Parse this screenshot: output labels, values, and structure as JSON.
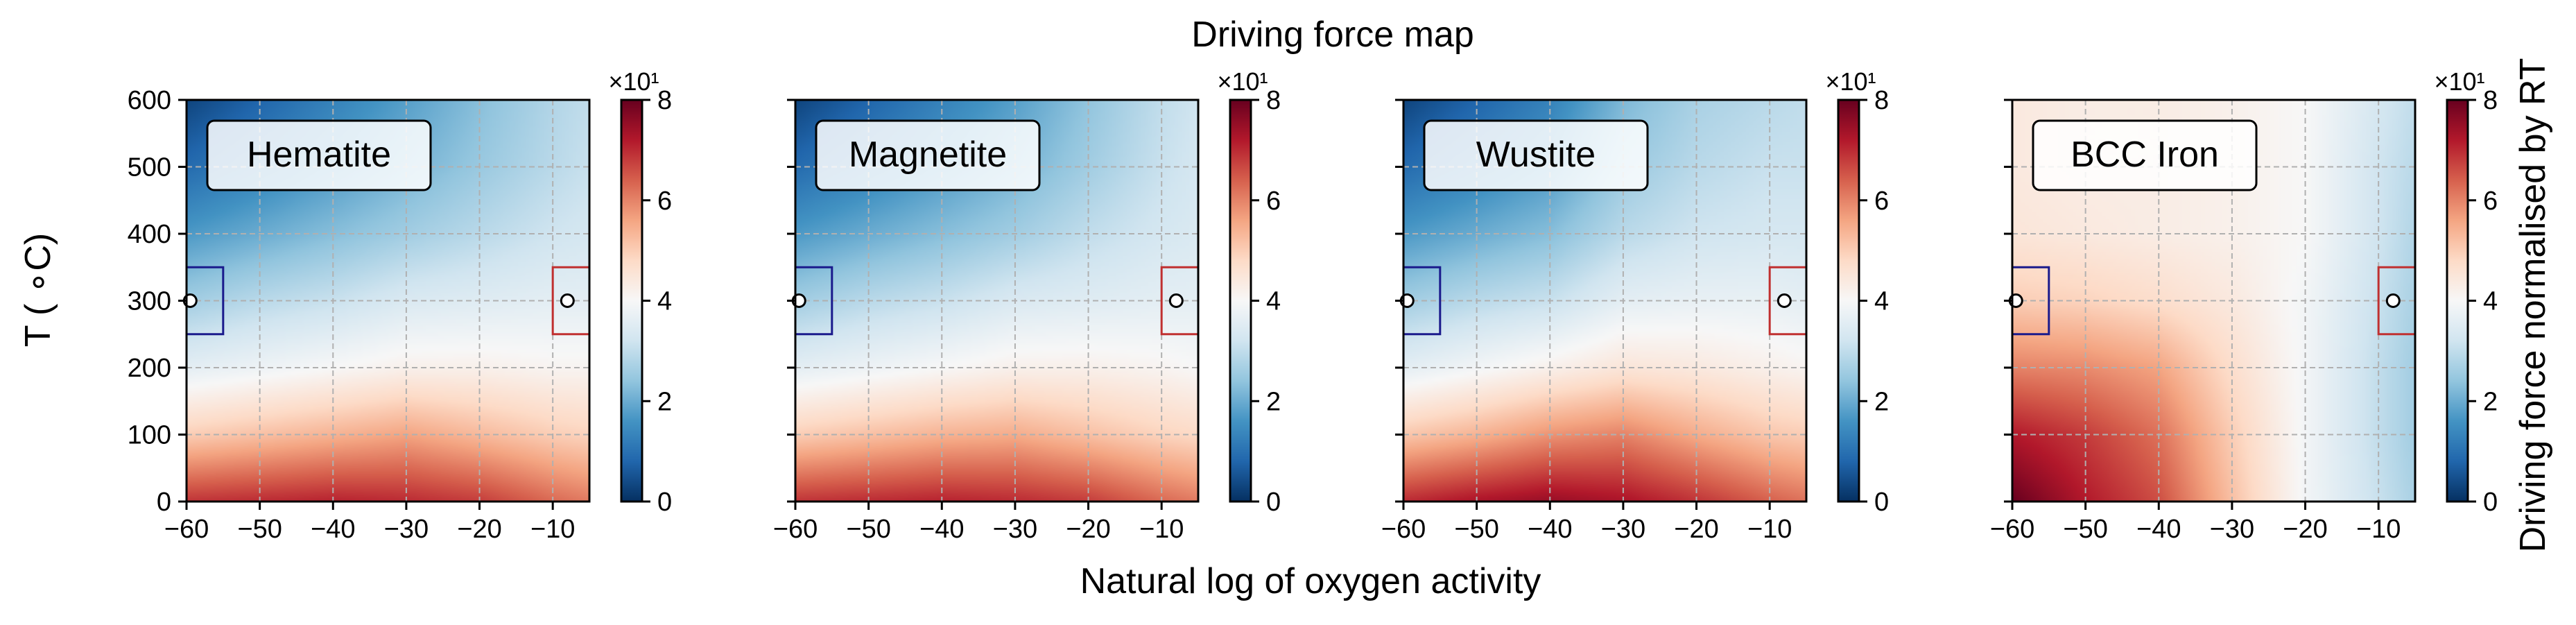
{
  "figure": {
    "title": "Driving force map",
    "xlabel": "Natural log of oxygen activity",
    "ylabel": "T ( ∘C)",
    "colorbar_label": "Driving force normalised by RT",
    "colorbar_exponent": "×10¹",
    "colorbar_ticks": [
      "0",
      "2",
      "4",
      "6",
      "8"
    ]
  },
  "chart_data": [
    {
      "type": "heatmap",
      "panel": "Hematite",
      "title": "Hematite",
      "xlim": [
        -60,
        -5
      ],
      "ylim": [
        0,
        600
      ],
      "x_ticks": [
        -60,
        -50,
        -40,
        -30,
        -20,
        -10
      ],
      "y_ticks": [
        0,
        100,
        200,
        300,
        400,
        500,
        600
      ],
      "grid": true,
      "colormap": "RdBu_r",
      "clim": [
        0,
        8
      ],
      "x": [
        -60,
        -50,
        -40,
        -30,
        -20,
        -10,
        -5
      ],
      "y": [
        0,
        100,
        200,
        300,
        400,
        500,
        600
      ],
      "z": [
        [
          6.9,
          7.0,
          7.1,
          7.0,
          6.8,
          6.3,
          6.1
        ],
        [
          5.0,
          5.2,
          5.4,
          5.6,
          5.3,
          5.0,
          4.9
        ],
        [
          3.6,
          3.8,
          4.0,
          4.2,
          4.2,
          4.1,
          4.1
        ],
        [
          2.6,
          2.9,
          3.1,
          3.4,
          3.5,
          3.6,
          3.6
        ],
        [
          1.7,
          2.0,
          2.3,
          2.6,
          2.9,
          3.2,
          3.3
        ],
        [
          0.9,
          1.3,
          1.7,
          2.1,
          2.5,
          2.9,
          3.1
        ],
        [
          0.3,
          0.8,
          1.3,
          1.8,
          2.3,
          2.8,
          3.0
        ]
      ],
      "markers": [
        {
          "x": -59.5,
          "y": 300
        },
        {
          "x": -8,
          "y": 300
        }
      ],
      "boxes": [
        {
          "x0": -60,
          "x1": -55,
          "y0": 250,
          "y1": 350,
          "color": "#1a1a8c"
        },
        {
          "x0": -10,
          "x1": -5,
          "y0": 250,
          "y1": 350,
          "color": "#c03030"
        }
      ]
    },
    {
      "type": "heatmap",
      "panel": "Magnetite",
      "title": "Magnetite",
      "xlim": [
        -60,
        -5
      ],
      "ylim": [
        0,
        600
      ],
      "x_ticks": [
        -60,
        -50,
        -40,
        -30,
        -20,
        -10
      ],
      "y_ticks": [
        0,
        100,
        200,
        300,
        400,
        500,
        600
      ],
      "grid": true,
      "colormap": "RdBu_r",
      "clim": [
        0,
        8
      ],
      "x": [
        -60,
        -50,
        -40,
        -30,
        -20,
        -10,
        -5
      ],
      "y": [
        0,
        100,
        200,
        300,
        400,
        500,
        600
      ],
      "z": [
        [
          6.9,
          7.0,
          7.1,
          7.0,
          6.8,
          6.3,
          6.1
        ],
        [
          5.0,
          5.2,
          5.4,
          5.5,
          5.2,
          4.9,
          4.8
        ],
        [
          3.6,
          3.8,
          4.0,
          4.2,
          4.2,
          4.1,
          4.0
        ],
        [
          2.6,
          2.9,
          3.1,
          3.4,
          3.5,
          3.6,
          3.6
        ],
        [
          1.7,
          2.0,
          2.3,
          2.6,
          3.0,
          3.3,
          3.4
        ],
        [
          0.9,
          1.3,
          1.7,
          2.1,
          2.6,
          3.1,
          3.3
        ],
        [
          0.3,
          0.8,
          1.3,
          1.8,
          2.4,
          3.0,
          3.2
        ]
      ],
      "markers": [
        {
          "x": -59.5,
          "y": 300
        },
        {
          "x": -8,
          "y": 300
        }
      ],
      "boxes": [
        {
          "x0": -60,
          "x1": -55,
          "y0": 250,
          "y1": 350,
          "color": "#1a1a8c"
        },
        {
          "x0": -10,
          "x1": -5,
          "y0": 250,
          "y1": 350,
          "color": "#c03030"
        }
      ]
    },
    {
      "type": "heatmap",
      "panel": "Wustite",
      "title": "Wustite",
      "xlim": [
        -60,
        -5
      ],
      "ylim": [
        0,
        600
      ],
      "x_ticks": [
        -60,
        -50,
        -40,
        -30,
        -20,
        -10
      ],
      "y_ticks": [
        0,
        100,
        200,
        300,
        400,
        500,
        600
      ],
      "grid": true,
      "colormap": "RdBu_r",
      "clim": [
        0,
        8
      ],
      "x": [
        -60,
        -50,
        -40,
        -30,
        -20,
        -10,
        -5
      ],
      "y": [
        0,
        100,
        200,
        300,
        400,
        500,
        600
      ],
      "z": [
        [
          7.0,
          7.3,
          7.5,
          7.3,
          6.9,
          6.4,
          6.2
        ],
        [
          5.1,
          5.4,
          5.8,
          6.0,
          5.5,
          5.1,
          5.0
        ],
        [
          3.6,
          3.9,
          4.2,
          4.5,
          4.4,
          4.2,
          4.1
        ],
        [
          2.6,
          2.9,
          3.1,
          3.6,
          3.7,
          3.7,
          3.6
        ],
        [
          1.7,
          2.0,
          2.3,
          2.9,
          3.2,
          3.3,
          3.3
        ],
        [
          0.9,
          1.3,
          1.7,
          2.5,
          2.9,
          3.1,
          3.1
        ],
        [
          0.3,
          0.8,
          1.3,
          2.2,
          2.7,
          2.9,
          3.0
        ]
      ],
      "markers": [
        {
          "x": -59.5,
          "y": 300
        },
        {
          "x": -8,
          "y": 300
        }
      ],
      "boxes": [
        {
          "x0": -60,
          "x1": -55,
          "y0": 250,
          "y1": 350,
          "color": "#1a1a8c"
        },
        {
          "x0": -10,
          "x1": -5,
          "y0": 250,
          "y1": 350,
          "color": "#c03030"
        }
      ]
    },
    {
      "type": "heatmap",
      "panel": "BCC Iron",
      "title": "BCC Iron",
      "xlim": [
        -60,
        -5
      ],
      "ylim": [
        0,
        600
      ],
      "x_ticks": [
        -60,
        -50,
        -40,
        -30,
        -20,
        -10
      ],
      "y_ticks": [
        0,
        100,
        200,
        300,
        400,
        500,
        600
      ],
      "grid": true,
      "colormap": "RdBu_r",
      "clim": [
        0,
        8
      ],
      "x": [
        -60,
        -50,
        -40,
        -30,
        -20,
        -10,
        -5
      ],
      "y": [
        0,
        100,
        200,
        300,
        400,
        500,
        600
      ],
      "z": [
        [
          8.0,
          7.2,
          6.6,
          5.2,
          3.9,
          3.1,
          2.7
        ],
        [
          7.2,
          6.8,
          6.2,
          5.0,
          3.9,
          3.0,
          2.6
        ],
        [
          6.0,
          5.9,
          5.6,
          4.7,
          3.9,
          3.0,
          2.6
        ],
        [
          5.0,
          4.9,
          4.7,
          4.4,
          3.9,
          3.1,
          2.7
        ],
        [
          4.5,
          4.4,
          4.3,
          4.2,
          4.0,
          3.2,
          2.8
        ],
        [
          4.4,
          4.3,
          4.3,
          4.2,
          4.0,
          3.2,
          2.9
        ],
        [
          4.4,
          4.3,
          4.3,
          4.2,
          4.0,
          3.3,
          3.0
        ]
      ],
      "markers": [
        {
          "x": -59.5,
          "y": 300
        },
        {
          "x": -8,
          "y": 300
        }
      ],
      "boxes": [
        {
          "x0": -60,
          "x1": -55,
          "y0": 250,
          "y1": 350,
          "color": "#1a1a8c"
        },
        {
          "x0": -10,
          "x1": -5,
          "y0": 250,
          "y1": 350,
          "color": "#c03030"
        }
      ]
    }
  ]
}
